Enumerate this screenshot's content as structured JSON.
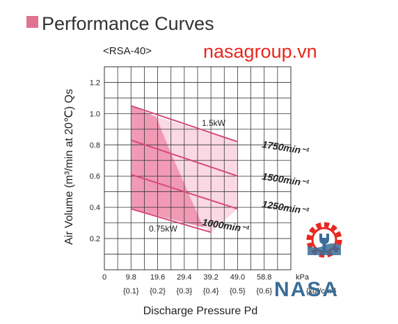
{
  "header": {
    "title": "Performance Curves"
  },
  "watermark": {
    "text": "nasagroup.vn",
    "color": "#e8271e"
  },
  "logo": {
    "text": "NASA",
    "color": "#3a6d98",
    "gear_color": "#e8271e",
    "icon": "gear-wrench-icon"
  },
  "colors": {
    "accent_square": "#e07392",
    "region_dark": "#f19ab6",
    "region_light": "#fbd9e4",
    "curve": "#d64a78",
    "grid": "#333333"
  },
  "chart_data": {
    "type": "line",
    "subtitle": "<RSA-40>",
    "ylabel": "Air Volume (m³/min at 20℃) Qs",
    "xlabel": "Discharge Pressure Pd",
    "x_unit": "kPa",
    "x_unit_alt": "{kgf/cm²}",
    "xlim": [
      0,
      68.6
    ],
    "ylim": [
      0,
      1.3
    ],
    "x_ticks": [
      {
        "value": 0,
        "label": "0",
        "alt": ""
      },
      {
        "value": 9.8,
        "label": "9.8",
        "alt": "{0.1}"
      },
      {
        "value": 19.6,
        "label": "19.6",
        "alt": "{0.2}"
      },
      {
        "value": 29.4,
        "label": "29.4",
        "alt": "{0.3}"
      },
      {
        "value": 39.2,
        "label": "39.2",
        "alt": "{0.4}"
      },
      {
        "value": 49.0,
        "label": "49.0",
        "alt": "{0.5}"
      },
      {
        "value": 58.8,
        "label": "58.8",
        "alt": "{0.6}"
      }
    ],
    "y_ticks": [
      {
        "value": 0.2,
        "label": "0.2"
      },
      {
        "value": 0.4,
        "label": "0.4"
      },
      {
        "value": 0.6,
        "label": "0.6"
      },
      {
        "value": 0.8,
        "label": "0.8"
      },
      {
        "value": 1.0,
        "label": "1.0"
      },
      {
        "value": 1.2,
        "label": "1.2"
      }
    ],
    "grid": true,
    "series": [
      {
        "name": "1750min⁻¹",
        "x": [
          9.8,
          49.0
        ],
        "y": [
          1.05,
          0.82
        ]
      },
      {
        "name": "1500min⁻¹",
        "x": [
          9.8,
          49.0
        ],
        "y": [
          0.83,
          0.6
        ]
      },
      {
        "name": "1250min⁻¹",
        "x": [
          9.8,
          49.0
        ],
        "y": [
          0.61,
          0.39
        ]
      },
      {
        "name": "1000min⁻¹",
        "x": [
          9.8,
          39.2
        ],
        "y": [
          0.39,
          0.24
        ]
      }
    ],
    "power_regions": [
      {
        "label": "0.75kW",
        "fill": "dark",
        "polygon": [
          [
            9.8,
            1.05
          ],
          [
            19.1,
            0.98
          ],
          [
            23.5,
            0.79
          ],
          [
            27.5,
            0.63
          ],
          [
            31.0,
            0.49
          ],
          [
            36.5,
            0.27
          ],
          [
            9.8,
            0.39
          ]
        ]
      },
      {
        "label": "1.5kW",
        "fill": "light",
        "polygon": [
          [
            19.1,
            0.98
          ],
          [
            49.0,
            0.82
          ],
          [
            49.0,
            0.39
          ],
          [
            39.2,
            0.24
          ],
          [
            36.5,
            0.27
          ],
          [
            31.0,
            0.49
          ],
          [
            27.5,
            0.63
          ],
          [
            23.5,
            0.79
          ]
        ]
      }
    ]
  }
}
